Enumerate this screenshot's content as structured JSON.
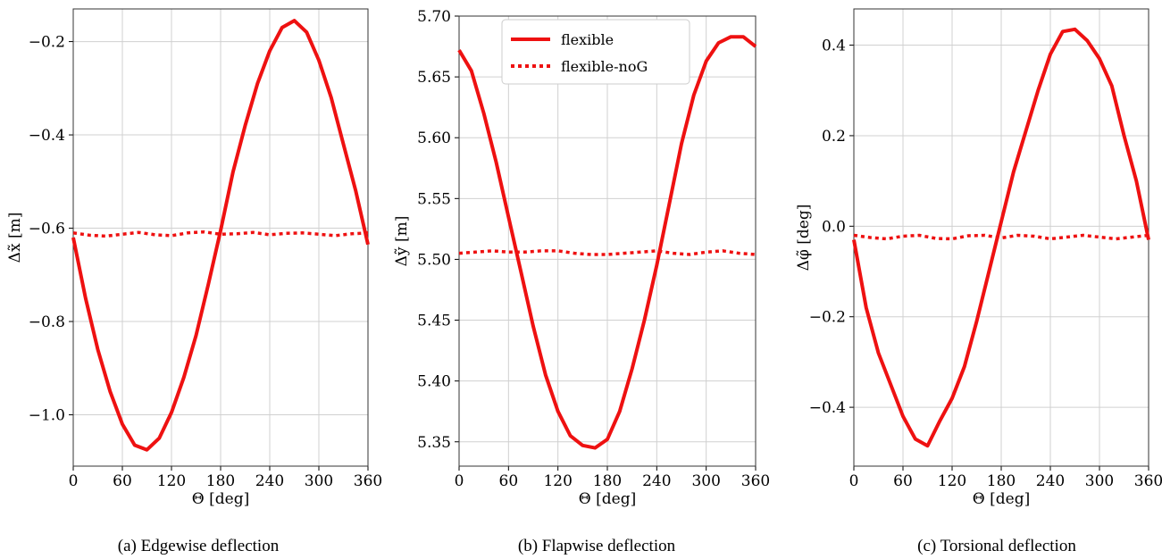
{
  "chart_data": [
    {
      "type": "line",
      "caption": "(a) Edgewise deflection",
      "xlabel": "Θ [deg]",
      "ylabel": "Δx̃ [m]",
      "xlim": [
        0,
        360
      ],
      "ylim": [
        -1.11,
        -0.13
      ],
      "xticks": [
        0,
        60,
        120,
        180,
        240,
        300,
        360
      ],
      "yticks": [
        -1.0,
        -0.8,
        -0.6,
        -0.4,
        -0.2
      ],
      "ytick_labels": [
        "−1.0",
        "−0.8",
        "−0.6",
        "−0.4",
        "−0.2"
      ],
      "xtick_labels": [
        "0",
        "60",
        "120",
        "180",
        "240",
        "300",
        "360"
      ],
      "grid": true,
      "series": [
        {
          "name": "flexible",
          "style": "solid",
          "color": "#ee1111",
          "x": [
            0,
            15,
            30,
            45,
            60,
            75,
            90,
            105,
            120,
            135,
            150,
            165,
            180,
            195,
            210,
            225,
            240,
            255,
            270,
            285,
            300,
            315,
            330,
            345,
            360
          ],
          "y": [
            -0.62,
            -0.75,
            -0.86,
            -0.95,
            -1.02,
            -1.065,
            -1.075,
            -1.05,
            -0.995,
            -0.92,
            -0.83,
            -0.72,
            -0.605,
            -0.48,
            -0.38,
            -0.29,
            -0.22,
            -0.17,
            -0.155,
            -0.18,
            -0.24,
            -0.32,
            -0.42,
            -0.52,
            -0.635
          ]
        },
        {
          "name": "flexible-noG",
          "style": "dotted",
          "color": "#ee1111",
          "x": [
            0,
            20,
            40,
            60,
            80,
            100,
            120,
            140,
            160,
            180,
            200,
            220,
            240,
            260,
            280,
            300,
            320,
            340,
            360
          ],
          "y": [
            -0.61,
            -0.615,
            -0.617,
            -0.613,
            -0.609,
            -0.614,
            -0.616,
            -0.61,
            -0.608,
            -0.613,
            -0.612,
            -0.609,
            -0.614,
            -0.611,
            -0.61,
            -0.613,
            -0.616,
            -0.612,
            -0.61
          ]
        }
      ]
    },
    {
      "type": "line",
      "caption": "(b) Flapwise deflection",
      "xlabel": "Θ [deg]",
      "ylabel": "Δỹ [m]",
      "xlim": [
        0,
        360
      ],
      "ylim": [
        5.33,
        5.7
      ],
      "xticks": [
        0,
        60,
        120,
        180,
        240,
        300,
        360
      ],
      "yticks": [
        5.35,
        5.4,
        5.45,
        5.5,
        5.55,
        5.6,
        5.65,
        5.7
      ],
      "ytick_labels": [
        "5.35",
        "5.40",
        "5.45",
        "5.50",
        "5.55",
        "5.60",
        "5.65",
        "5.70"
      ],
      "xtick_labels": [
        "0",
        "60",
        "120",
        "180",
        "240",
        "300",
        "360"
      ],
      "grid": true,
      "legend": {
        "position": "upper-center",
        "entries": [
          "flexible",
          "flexible-noG"
        ]
      },
      "series": [
        {
          "name": "flexible",
          "style": "solid",
          "color": "#ee1111",
          "x": [
            0,
            15,
            30,
            45,
            60,
            75,
            90,
            105,
            120,
            135,
            150,
            165,
            180,
            195,
            210,
            225,
            240,
            255,
            270,
            285,
            300,
            315,
            330,
            345,
            360
          ],
          "y": [
            5.672,
            5.655,
            5.62,
            5.58,
            5.535,
            5.49,
            5.445,
            5.405,
            5.375,
            5.355,
            5.347,
            5.345,
            5.352,
            5.375,
            5.41,
            5.45,
            5.495,
            5.545,
            5.595,
            5.635,
            5.663,
            5.678,
            5.683,
            5.683,
            5.675
          ]
        },
        {
          "name": "flexible-noG",
          "style": "dotted",
          "color": "#ee1111",
          "x": [
            0,
            20,
            40,
            60,
            80,
            100,
            120,
            140,
            160,
            180,
            200,
            220,
            240,
            260,
            280,
            300,
            320,
            340,
            360
          ],
          "y": [
            5.505,
            5.506,
            5.507,
            5.506,
            5.506,
            5.507,
            5.507,
            5.505,
            5.504,
            5.504,
            5.505,
            5.506,
            5.507,
            5.505,
            5.504,
            5.506,
            5.507,
            5.505,
            5.504
          ]
        }
      ]
    },
    {
      "type": "line",
      "caption": "(c) Torsional deflection",
      "xlabel": "Θ [deg]",
      "ylabel": "Δφ̃ [deg]",
      "xlim": [
        0,
        360
      ],
      "ylim": [
        -0.53,
        0.48
      ],
      "xticks": [
        0,
        60,
        120,
        180,
        240,
        300,
        360
      ],
      "yticks": [
        -0.4,
        -0.2,
        0.0,
        0.2,
        0.4
      ],
      "ytick_labels": [
        "−0.4",
        "−0.2",
        "0.0",
        "0.2",
        "0.4"
      ],
      "xtick_labels": [
        "0",
        "60",
        "120",
        "180",
        "240",
        "300",
        "360"
      ],
      "grid": true,
      "series": [
        {
          "name": "flexible",
          "style": "solid",
          "color": "#ee1111",
          "x": [
            0,
            15,
            30,
            45,
            60,
            75,
            90,
            105,
            120,
            135,
            150,
            165,
            180,
            195,
            210,
            225,
            240,
            255,
            270,
            285,
            300,
            315,
            330,
            345,
            360
          ],
          "y": [
            -0.03,
            -0.18,
            -0.28,
            -0.35,
            -0.42,
            -0.47,
            -0.485,
            -0.43,
            -0.38,
            -0.31,
            -0.21,
            -0.1,
            0.01,
            0.12,
            0.21,
            0.3,
            0.38,
            0.43,
            0.435,
            0.41,
            0.37,
            0.31,
            0.2,
            0.1,
            -0.03
          ]
        },
        {
          "name": "flexible-noG",
          "style": "dotted",
          "color": "#ee1111",
          "x": [
            0,
            20,
            40,
            60,
            80,
            100,
            120,
            140,
            160,
            180,
            200,
            220,
            240,
            260,
            280,
            300,
            320,
            340,
            360
          ],
          "y": [
            -0.02,
            -0.025,
            -0.028,
            -0.022,
            -0.02,
            -0.027,
            -0.028,
            -0.021,
            -0.02,
            -0.026,
            -0.02,
            -0.022,
            -0.028,
            -0.024,
            -0.02,
            -0.024,
            -0.028,
            -0.024,
            -0.02
          ]
        }
      ]
    }
  ]
}
